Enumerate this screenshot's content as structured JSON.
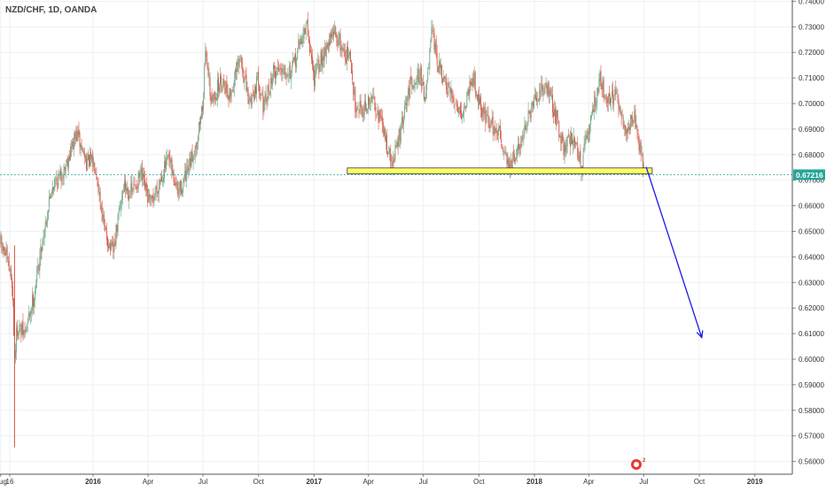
{
  "header": {
    "symbol": "NZD/CHF, 1D, OANDA"
  },
  "chart_data": {
    "type": "candlestick",
    "title": "NZD/CHF, 1D, OANDA",
    "y_axis": {
      "position": "right",
      "ylim": [
        0.555,
        0.7405
      ],
      "ticks": [
        "0.74000",
        "0.73000",
        "0.72000",
        "0.71000",
        "0.70000",
        "0.69000",
        "0.68000",
        "0.67000",
        "0.66000",
        "0.65000",
        "0.64000",
        "0.63000",
        "0.62000",
        "0.61000",
        "0.60000",
        "0.59000",
        "0.58000",
        "0.57000",
        "0.56000"
      ]
    },
    "x_axis": {
      "ticks": [
        {
          "label": "Aug",
          "date": "2015-08-01",
          "bold": false
        },
        {
          "label": "16",
          "date": "2015-08-16",
          "bold": false
        },
        {
          "label": "2016",
          "date": "2016-01-01",
          "bold": true
        },
        {
          "label": "Apr",
          "date": "2016-04-01",
          "bold": false
        },
        {
          "label": "Jul",
          "date": "2016-07-01",
          "bold": false
        },
        {
          "label": "Oct",
          "date": "2016-10-01",
          "bold": false
        },
        {
          "label": "2017",
          "date": "2017-01-01",
          "bold": true
        },
        {
          "label": "Apr",
          "date": "2017-04-01",
          "bold": false
        },
        {
          "label": "Jul",
          "date": "2017-07-01",
          "bold": false
        },
        {
          "label": "Oct",
          "date": "2017-10-01",
          "bold": false
        },
        {
          "label": "2018",
          "date": "2018-01-01",
          "bold": true
        },
        {
          "label": "Apr",
          "date": "2018-04-01",
          "bold": false
        },
        {
          "label": "Jul",
          "date": "2018-07-01",
          "bold": false
        },
        {
          "label": "Oct",
          "date": "2018-10-01",
          "bold": false
        },
        {
          "label": "2019",
          "date": "2019-01-01",
          "bold": true
        }
      ]
    },
    "close_price": 0.67216,
    "close_price_label": "0.67216",
    "grid": true,
    "colors": {
      "up": "#6ba583",
      "down": "#d75442",
      "price_line": "#26a69a",
      "support_fill": "#ffff66",
      "support_border": "#333333",
      "arrow": "#1a1ae6"
    },
    "series": [
      {
        "kind": "close_path",
        "points": [
          [
            "2015-08-01",
            0.645
          ],
          [
            "2015-08-10",
            0.64
          ],
          [
            "2015-08-20",
            0.63
          ],
          [
            "2015-08-24",
            0.6
          ],
          [
            "2015-08-28",
            0.612
          ],
          [
            "2015-09-10",
            0.61
          ],
          [
            "2015-09-25",
            0.625
          ],
          [
            "2015-10-10",
            0.648
          ],
          [
            "2015-10-25",
            0.668
          ],
          [
            "2015-11-10",
            0.672
          ],
          [
            "2015-11-22",
            0.68
          ],
          [
            "2015-12-05",
            0.688
          ],
          [
            "2015-12-20",
            0.678
          ],
          [
            "2016-01-05",
            0.676
          ],
          [
            "2016-01-20",
            0.65
          ],
          [
            "2016-02-03",
            0.641
          ],
          [
            "2016-02-20",
            0.668
          ],
          [
            "2016-03-05",
            0.665
          ],
          [
            "2016-03-20",
            0.672
          ],
          [
            "2016-04-05",
            0.66
          ],
          [
            "2016-04-20",
            0.67
          ],
          [
            "2016-05-05",
            0.678
          ],
          [
            "2016-05-20",
            0.665
          ],
          [
            "2016-06-05",
            0.672
          ],
          [
            "2016-06-20",
            0.685
          ],
          [
            "2016-07-01",
            0.7
          ],
          [
            "2016-07-06",
            0.722
          ],
          [
            "2016-07-15",
            0.7
          ],
          [
            "2016-08-01",
            0.71
          ],
          [
            "2016-08-15",
            0.703
          ],
          [
            "2016-09-01",
            0.718
          ],
          [
            "2016-09-15",
            0.7
          ],
          [
            "2016-10-01",
            0.71
          ],
          [
            "2016-10-10",
            0.698
          ],
          [
            "2016-10-25",
            0.712
          ],
          [
            "2016-11-10",
            0.715
          ],
          [
            "2016-11-25",
            0.712
          ],
          [
            "2016-12-10",
            0.725
          ],
          [
            "2016-12-20",
            0.73
          ],
          [
            "2017-01-01",
            0.71
          ],
          [
            "2017-01-20",
            0.722
          ],
          [
            "2017-02-05",
            0.728
          ],
          [
            "2017-02-20",
            0.72
          ],
          [
            "2017-03-01",
            0.718
          ],
          [
            "2017-03-10",
            0.7
          ],
          [
            "2017-03-25",
            0.698
          ],
          [
            "2017-04-10",
            0.702
          ],
          [
            "2017-04-25",
            0.69
          ],
          [
            "2017-05-10",
            0.676
          ],
          [
            "2017-05-25",
            0.69
          ],
          [
            "2017-06-10",
            0.708
          ],
          [
            "2017-06-25",
            0.712
          ],
          [
            "2017-07-05",
            0.702
          ],
          [
            "2017-07-15",
            0.728
          ],
          [
            "2017-07-25",
            0.715
          ],
          [
            "2017-08-10",
            0.705
          ],
          [
            "2017-08-25",
            0.7
          ],
          [
            "2017-09-05",
            0.696
          ],
          [
            "2017-09-20",
            0.712
          ],
          [
            "2017-10-05",
            0.698
          ],
          [
            "2017-10-20",
            0.692
          ],
          [
            "2017-11-05",
            0.688
          ],
          [
            "2017-11-20",
            0.675
          ],
          [
            "2017-12-01",
            0.679
          ],
          [
            "2017-12-15",
            0.69
          ],
          [
            "2018-01-01",
            0.7
          ],
          [
            "2018-01-20",
            0.708
          ],
          [
            "2018-02-05",
            0.695
          ],
          [
            "2018-02-20",
            0.682
          ],
          [
            "2018-03-05",
            0.688
          ],
          [
            "2018-03-20",
            0.676
          ],
          [
            "2018-04-05",
            0.695
          ],
          [
            "2018-04-20",
            0.71
          ],
          [
            "2018-05-01",
            0.702
          ],
          [
            "2018-05-15",
            0.703
          ],
          [
            "2018-06-01",
            0.688
          ],
          [
            "2018-06-15",
            0.696
          ],
          [
            "2018-06-25",
            0.682
          ],
          [
            "2018-07-02",
            0.672
          ]
        ]
      }
    ],
    "annotations": [
      {
        "type": "rectangle",
        "label": "support-zone",
        "x1": "2017-02-25",
        "x2": "2018-07-15",
        "y1": 0.6725,
        "y2": 0.6748
      },
      {
        "type": "arrow",
        "label": "projection",
        "from": {
          "date": "2018-07-05",
          "price": 0.6752
        },
        "to": {
          "date": "2018-10-05",
          "price": 0.6085
        }
      }
    ]
  }
}
